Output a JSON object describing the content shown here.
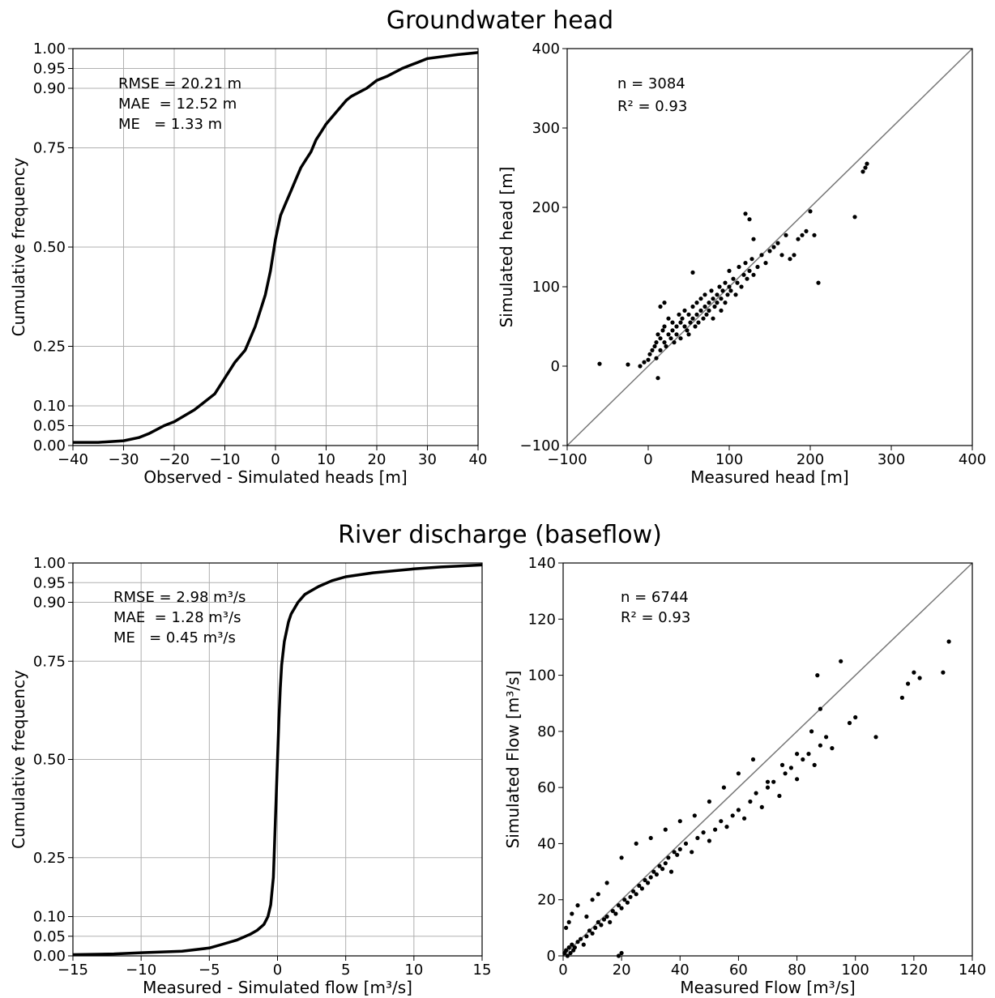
{
  "titles": {
    "top": "Groundwater head",
    "bottom": "River discharge (baseflow)"
  },
  "chart_data": [
    {
      "id": "gw-cdf",
      "type": "line",
      "xlabel": "Observed - Simulated heads  [m]",
      "ylabel": "Cumulative frequency",
      "xlim": [
        -40,
        40
      ],
      "ylim": [
        0,
        1
      ],
      "xticks": [
        "−40",
        "−30",
        "−20",
        "−10",
        "0",
        "10",
        "20",
        "30",
        "40"
      ],
      "yticks": [
        "0.00",
        "0.05",
        "0.10",
        "0.25",
        "0.50",
        "0.75",
        "0.90",
        "0.95",
        "1.00"
      ],
      "grid": true,
      "annotations": [
        "RMSE = 20.21 m",
        "MAE  = 12.52 m",
        "ME   = 1.33 m"
      ],
      "x": [
        -40,
        -35,
        -30,
        -27,
        -25,
        -22,
        -20,
        -18,
        -16,
        -14,
        -12,
        -10,
        -8,
        -6,
        -5,
        -4,
        -3,
        -2,
        -1,
        0,
        1,
        2,
        3,
        4,
        5,
        6,
        7,
        8,
        9,
        10,
        12,
        14,
        15,
        18,
        20,
        22,
        25,
        28,
        30,
        33,
        36,
        40
      ],
      "y": [
        0.008,
        0.008,
        0.012,
        0.02,
        0.03,
        0.05,
        0.06,
        0.075,
        0.09,
        0.11,
        0.13,
        0.17,
        0.21,
        0.24,
        0.27,
        0.3,
        0.34,
        0.38,
        0.44,
        0.52,
        0.58,
        0.61,
        0.64,
        0.67,
        0.7,
        0.72,
        0.74,
        0.77,
        0.79,
        0.81,
        0.84,
        0.87,
        0.88,
        0.9,
        0.92,
        0.93,
        0.95,
        0.965,
        0.975,
        0.98,
        0.985,
        0.99
      ]
    },
    {
      "id": "gw-scatter",
      "type": "scatter",
      "xlabel": "Measured head [m]",
      "ylabel": "Simulated head [m]",
      "xlim": [
        -100,
        400
      ],
      "ylim": [
        -100,
        400
      ],
      "xticks": [
        "−100",
        "0",
        "100",
        "200",
        "300",
        "400"
      ],
      "yticks": [
        "−100",
        "0",
        "100",
        "200",
        "300",
        "400"
      ],
      "grid": false,
      "annotations": [
        "n = 3084",
        "R² = 0.93"
      ],
      "identity_line": true,
      "x": [
        -60,
        -25,
        -10,
        -5,
        0,
        2,
        5,
        8,
        10,
        10,
        12,
        12,
        15,
        15,
        18,
        20,
        20,
        22,
        25,
        25,
        28,
        30,
        30,
        32,
        35,
        35,
        38,
        40,
        40,
        42,
        45,
        45,
        48,
        50,
        50,
        52,
        55,
        55,
        58,
        60,
        60,
        62,
        65,
        65,
        68,
        70,
        70,
        72,
        75,
        75,
        78,
        80,
        80,
        82,
        85,
        85,
        88,
        90,
        90,
        92,
        95,
        95,
        98,
        100,
        100,
        102,
        105,
        108,
        110,
        112,
        115,
        118,
        120,
        122,
        125,
        128,
        130,
        135,
        140,
        145,
        150,
        155,
        160,
        165,
        170,
        175,
        180,
        185,
        190,
        195,
        200,
        205,
        210,
        255,
        265,
        268,
        270,
        15,
        20,
        120,
        125,
        130,
        55
      ],
      "y": [
        3,
        2,
        0,
        5,
        8,
        15,
        20,
        25,
        10,
        30,
        -15,
        40,
        35,
        20,
        45,
        30,
        50,
        25,
        40,
        60,
        35,
        45,
        55,
        30,
        50,
        40,
        65,
        55,
        35,
        60,
        50,
        70,
        45,
        65,
        40,
        55,
        75,
        60,
        50,
        80,
        65,
        55,
        70,
        85,
        60,
        75,
        90,
        65,
        80,
        70,
        95,
        85,
        60,
        75,
        90,
        80,
        100,
        85,
        70,
        95,
        80,
        105,
        90,
        100,
        120,
        95,
        110,
        90,
        105,
        125,
        100,
        115,
        130,
        110,
        120,
        135,
        115,
        125,
        140,
        130,
        145,
        150,
        155,
        140,
        165,
        135,
        140,
        160,
        165,
        170,
        195,
        165,
        105,
        188,
        245,
        250,
        255,
        75,
        80,
        192,
        185,
        160,
        118
      ]
    },
    {
      "id": "rd-cdf",
      "type": "line",
      "xlabel": "Measured - Simulated flow  [m³/s]",
      "ylabel": "Cumulative frequency",
      "xlim": [
        -15,
        15
      ],
      "ylim": [
        0,
        1
      ],
      "xticks": [
        "−15",
        "−10",
        "−5",
        "0",
        "5",
        "10",
        "15"
      ],
      "yticks": [
        "0.00",
        "0.05",
        "0.10",
        "0.25",
        "0.50",
        "0.75",
        "0.90",
        "0.95",
        "1.00"
      ],
      "grid": true,
      "annotations": [
        "RMSE = 2.98 m³/s",
        "MAE  = 1.28 m³/s",
        "ME   = 0.45 m³/s"
      ],
      "x": [
        -15,
        -12,
        -10,
        -7,
        -5,
        -4,
        -3,
        -2,
        -1.5,
        -1,
        -0.7,
        -0.5,
        -0.3,
        -0.2,
        -0.1,
        0,
        0.1,
        0.2,
        0.3,
        0.5,
        0.8,
        1,
        1.5,
        2,
        3,
        4,
        5,
        7,
        10,
        12,
        15
      ],
      "y": [
        0.003,
        0.005,
        0.008,
        0.012,
        0.02,
        0.03,
        0.04,
        0.055,
        0.065,
        0.08,
        0.1,
        0.13,
        0.2,
        0.3,
        0.4,
        0.5,
        0.6,
        0.68,
        0.74,
        0.8,
        0.85,
        0.87,
        0.9,
        0.92,
        0.94,
        0.955,
        0.965,
        0.975,
        0.985,
        0.99,
        0.995
      ]
    },
    {
      "id": "rd-scatter",
      "type": "scatter",
      "xlabel": "Measured Flow [m³/s]",
      "ylabel": "Simulated Flow [m³/s]",
      "xlim": [
        0,
        140
      ],
      "ylim": [
        0,
        140
      ],
      "xticks": [
        "0",
        "20",
        "40",
        "60",
        "80",
        "100",
        "120",
        "140"
      ],
      "yticks": [
        "0",
        "20",
        "40",
        "60",
        "80",
        "100",
        "120",
        "140"
      ],
      "grid": false,
      "annotations": [
        "n = 6744",
        "R² = 0.93"
      ],
      "identity_line": true,
      "x": [
        0.5,
        1,
        1.5,
        2,
        2.5,
        3,
        3.5,
        4,
        5,
        6,
        7,
        8,
        9,
        10,
        11,
        12,
        13,
        14,
        15,
        16,
        17,
        18,
        19,
        20,
        21,
        22,
        23,
        24,
        25,
        26,
        27,
        28,
        29,
        30,
        31,
        32,
        33,
        34,
        35,
        36,
        37,
        38,
        39,
        40,
        42,
        44,
        46,
        48,
        50,
        52,
        54,
        56,
        58,
        60,
        62,
        64,
        66,
        68,
        70,
        72,
        74,
        76,
        78,
        80,
        82,
        84,
        86,
        88,
        90,
        92,
        95,
        98,
        100,
        107,
        116,
        118,
        120,
        122,
        130,
        132,
        1,
        2,
        3,
        5,
        8,
        10,
        12,
        15,
        20,
        25,
        30,
        35,
        40,
        45,
        50,
        55,
        60,
        65,
        70,
        75,
        80,
        85,
        87,
        88,
        19,
        20
      ],
      "y": [
        1,
        2,
        0,
        3,
        1,
        4,
        2,
        3,
        5,
        6,
        4,
        7,
        9,
        8,
        10,
        12,
        11,
        13,
        14,
        12,
        16,
        15,
        18,
        17,
        20,
        19,
        21,
        23,
        22,
        25,
        24,
        27,
        26,
        28,
        30,
        29,
        32,
        31,
        33,
        35,
        30,
        37,
        36,
        38,
        40,
        37,
        42,
        44,
        41,
        45,
        48,
        46,
        50,
        52,
        49,
        55,
        58,
        53,
        60,
        62,
        57,
        65,
        67,
        63,
        70,
        72,
        68,
        75,
        78,
        74,
        105,
        83,
        85,
        78,
        92,
        97,
        101,
        99,
        101,
        112,
        10,
        12,
        15,
        18,
        14,
        20,
        22,
        26,
        35,
        40,
        42,
        45,
        48,
        50,
        55,
        60,
        65,
        70,
        62,
        68,
        72,
        80,
        100,
        88,
        0,
        1
      ]
    }
  ]
}
